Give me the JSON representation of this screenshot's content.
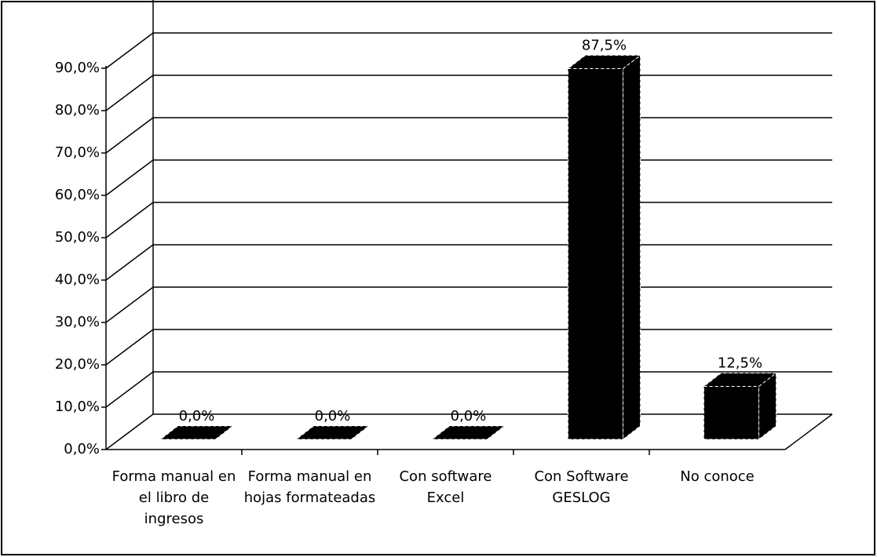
{
  "chart_data": {
    "type": "bar3d",
    "categories": [
      "Forma manual en el libro de ingresos",
      "Forma manual en hojas formateadas",
      "Con software Excel",
      "Con Software GESLOG",
      "No conoce"
    ],
    "values": [
      0,
      0,
      0,
      87.5,
      12.5
    ],
    "value_labels": [
      "0,0%",
      "0,0%",
      "0,0%",
      "87,5%",
      "12,5%"
    ],
    "color": "#000000",
    "ylim": [
      0,
      100
    ],
    "yticks": [
      {
        "value": 0,
        "label": "0,0%"
      },
      {
        "value": 10,
        "label": "10,0%"
      },
      {
        "value": 20,
        "label": "20,0%"
      },
      {
        "value": 30,
        "label": "30,0%"
      },
      {
        "value": 40,
        "label": "40,0%"
      },
      {
        "value": 50,
        "label": "50,0%"
      },
      {
        "value": 60,
        "label": "60,0%"
      },
      {
        "value": 70,
        "label": "70,0%"
      },
      {
        "value": 80,
        "label": "80,0%"
      },
      {
        "value": 90,
        "label": "90,0%"
      }
    ],
    "grid": true
  }
}
